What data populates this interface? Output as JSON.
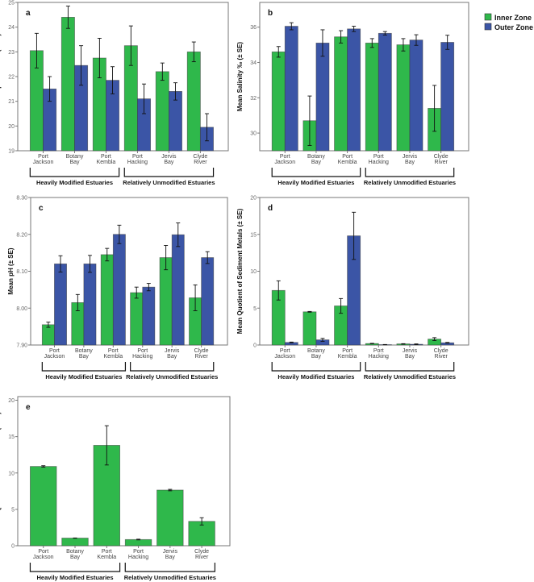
{
  "legend": [
    {
      "name": "Inner Zone",
      "color": "#2fb84b"
    },
    {
      "name": "Outer Zone",
      "color": "#3b55a6"
    }
  ],
  "chart_data": [
    {
      "type": "bar",
      "panel_label": "a",
      "ylabel": "Mean Temperature °C (± SE)",
      "ylim": [
        19,
        25
      ],
      "yticks": [
        "19",
        "20",
        "21",
        "22",
        "23",
        "24",
        "25"
      ],
      "ytick_values": [
        19,
        20,
        21,
        22,
        23,
        24,
        25
      ],
      "categories": [
        [
          "Port",
          "Jackson"
        ],
        [
          "Botany",
          "Bay"
        ],
        [
          "Port",
          "Kembla"
        ],
        [
          "Port",
          "Hacking"
        ],
        [
          "Jervis",
          "Bay"
        ],
        [
          "Clyde",
          "River"
        ]
      ],
      "groups": [
        "Heavily Modified Estuaries",
        "Relatively Unmodified Estuaries"
      ],
      "series": [
        {
          "name": "Inner Zone",
          "values": [
            23.05,
            24.4,
            22.75,
            23.25,
            22.2,
            23.0
          ],
          "errors": [
            0.7,
            0.45,
            0.8,
            0.8,
            0.35,
            0.4
          ]
        },
        {
          "name": "Outer Zone",
          "values": [
            21.5,
            22.45,
            21.85,
            21.1,
            21.4,
            19.95
          ],
          "errors": [
            0.5,
            0.8,
            0.55,
            0.6,
            0.35,
            0.55
          ]
        }
      ]
    },
    {
      "type": "bar",
      "panel_label": "b",
      "ylabel": "Mean Salinity ‰ (± SE)",
      "ylim": [
        29,
        37.4
      ],
      "yticks": [
        "30",
        "32",
        "34",
        "36"
      ],
      "ytick_values": [
        30,
        32,
        34,
        36
      ],
      "categories": [
        [
          "Port",
          "Jackson"
        ],
        [
          "Botany",
          "Bay"
        ],
        [
          "Port",
          "Kembla"
        ],
        [
          "Port",
          "Hacking"
        ],
        [
          "Jervis",
          "Bay"
        ],
        [
          "Clyde",
          "River"
        ]
      ],
      "groups": [
        "Heavily Modified Estuaries",
        "Relatively Unmodified Estuaries"
      ],
      "series": [
        {
          "name": "Inner Zone",
          "values": [
            34.6,
            30.7,
            35.45,
            35.1,
            35.0,
            31.4
          ],
          "errors": [
            0.3,
            1.4,
            0.35,
            0.25,
            0.35,
            1.3
          ]
        },
        {
          "name": "Outer Zone",
          "values": [
            36.05,
            35.1,
            35.9,
            35.65,
            35.27,
            35.14
          ],
          "errors": [
            0.2,
            0.75,
            0.15,
            0.1,
            0.3,
            0.4
          ]
        }
      ]
    },
    {
      "type": "bar",
      "panel_label": "c",
      "ylabel": "Mean pH (± SE)",
      "ylim": [
        7.9,
        8.3
      ],
      "yticks": [
        "7.90",
        "8.00",
        "8.10",
        "8.20",
        "8.30"
      ],
      "ytick_values": [
        7.9,
        8.0,
        8.1,
        8.2,
        8.3
      ],
      "categories": [
        [
          "Port",
          "Jackson"
        ],
        [
          "Botany",
          "Bay"
        ],
        [
          "Port",
          "Kembla"
        ],
        [
          "Port",
          "Hacking"
        ],
        [
          "Jervis",
          "Bay"
        ],
        [
          "Clyde",
          "River"
        ]
      ],
      "groups": [
        "Heavily Modified Estuaries",
        "Relatively Unmodified Estuaries"
      ],
      "series": [
        {
          "name": "Inner Zone",
          "values": [
            7.955,
            8.015,
            8.145,
            8.042,
            8.137,
            8.028
          ],
          "errors": [
            0.007,
            0.022,
            0.017,
            0.015,
            0.033,
            0.035
          ]
        },
        {
          "name": "Outer Zone",
          "values": [
            8.12,
            8.12,
            8.2,
            8.057,
            8.199,
            8.137
          ],
          "errors": [
            0.022,
            0.023,
            0.025,
            0.01,
            0.032,
            0.016
          ]
        }
      ]
    },
    {
      "type": "bar",
      "panel_label": "d",
      "ylabel": "Mean Quotient of Sediment Metals (± SE)",
      "ylim": [
        0,
        20
      ],
      "yticks": [
        "0",
        "5",
        "10",
        "15",
        "20"
      ],
      "ytick_values": [
        0,
        5,
        10,
        15,
        20
      ],
      "categories": [
        [
          "Port",
          "Jackson"
        ],
        [
          "Botany",
          "Bay"
        ],
        [
          "Port",
          "Kembla"
        ],
        [
          "Port",
          "Hacking"
        ],
        [
          "Jervis",
          "Bay"
        ],
        [
          "Clyde",
          "River"
        ]
      ],
      "groups": [
        "Heavily Modified Estuaries",
        "Relatively Unmodified Estuaries"
      ],
      "series": [
        {
          "name": "Inner Zone",
          "values": [
            7.4,
            4.5,
            5.3,
            0.2,
            0.15,
            0.8
          ],
          "errors": [
            1.3,
            0.05,
            1.0,
            0.03,
            0.03,
            0.2
          ]
        },
        {
          "name": "Outer Zone",
          "values": [
            0.35,
            0.7,
            14.8,
            0.05,
            0.1,
            0.3
          ],
          "errors": [
            0.05,
            0.2,
            3.2,
            0.02,
            0.05,
            0.05
          ]
        }
      ]
    },
    {
      "type": "bar",
      "panel_label": "e",
      "ylabel": "Mean Quotient of Sediment PAH (± SE)",
      "ylim": [
        0,
        20.5
      ],
      "yticks": [
        "0",
        "5",
        "10",
        "15",
        "20"
      ],
      "ytick_values": [
        0,
        5,
        10,
        15,
        20
      ],
      "categories": [
        [
          "Port",
          "Jackson"
        ],
        [
          "Botany",
          "Bay"
        ],
        [
          "Port",
          "Kembla"
        ],
        [
          "Port",
          "Hacking"
        ],
        [
          "Jervis",
          "Bay"
        ],
        [
          "Clyde",
          "River"
        ]
      ],
      "groups": [
        "Heavily Modified Estuaries",
        "Relatively Unmodified Estuaries"
      ],
      "series": [
        {
          "name": "Inner Zone",
          "values": [
            10.9,
            1.05,
            13.8,
            0.85,
            7.65,
            3.35
          ],
          "errors": [
            0.1,
            0.02,
            2.7,
            0.05,
            0.1,
            0.5
          ]
        }
      ]
    }
  ]
}
